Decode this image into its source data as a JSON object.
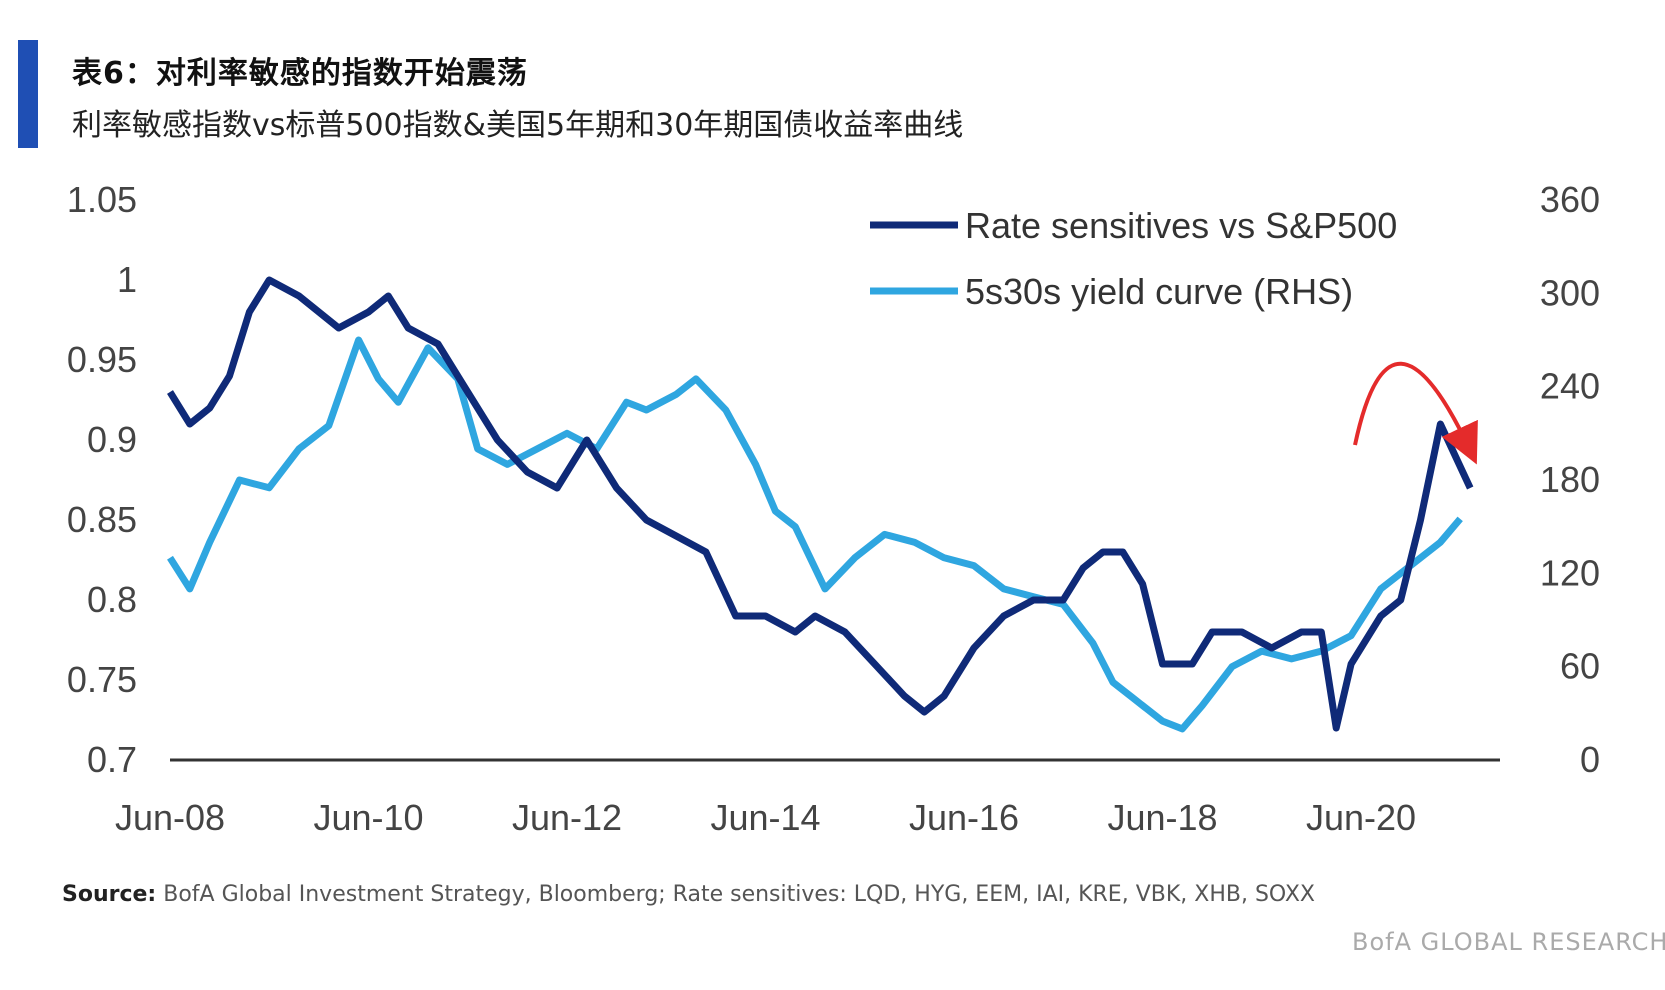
{
  "title": "表6：对利率敏感的指数开始震荡",
  "subtitle": "利率敏感指数vs标普500指数&美国5年期和30年期国债收益率曲线",
  "source_label": "Source:",
  "source_text": "BofA Global Investment Strategy, Bloomberg; Rate sensitives: LQD, HYG, EEM, IAI, KRE, VBK, XHB, SOXX",
  "brand": "BofA GLOBAL RESEARCH",
  "colors": {
    "dark_series": "#0f2a78",
    "light_series": "#2fa6e0",
    "arrow": "#e42b2b",
    "axis": "#333333"
  },
  "chart_data": {
    "type": "line",
    "x_ticks": [
      "Jun-08",
      "Jun-10",
      "Jun-12",
      "Jun-14",
      "Jun-16",
      "Jun-18",
      "Jun-20"
    ],
    "x_tick_years": [
      2008.5,
      2010.5,
      2012.5,
      2014.5,
      2016.5,
      2018.5,
      2020.5
    ],
    "xlim": [
      2008.5,
      2021.8
    ],
    "y_left": {
      "min": 0.7,
      "max": 1.05,
      "ticks": [
        "1.05",
        "1",
        "0.95",
        "0.9",
        "0.85",
        "0.8",
        "0.75",
        "0.7"
      ]
    },
    "y_right": {
      "min": 0,
      "max": 360,
      "ticks": [
        "360",
        "300",
        "240",
        "180",
        "120",
        "60",
        "0"
      ]
    },
    "legend_position": "top-right",
    "series": [
      {
        "name": "Rate sensitives vs S&P500",
        "axis": "left",
        "color": "#0f2a78",
        "x": [
          2008.5,
          2008.7,
          2008.9,
          2009.1,
          2009.3,
          2009.5,
          2009.8,
          2010.2,
          2010.5,
          2010.7,
          2010.9,
          2011.2,
          2011.5,
          2011.8,
          2012.1,
          2012.4,
          2012.7,
          2013.0,
          2013.3,
          2013.6,
          2013.9,
          2014.2,
          2014.5,
          2014.8,
          2015.0,
          2015.3,
          2015.6,
          2015.9,
          2016.1,
          2016.3,
          2016.6,
          2016.9,
          2017.2,
          2017.5,
          2017.7,
          2017.9,
          2018.1,
          2018.3,
          2018.5,
          2018.8,
          2019.0,
          2019.3,
          2019.6,
          2019.9,
          2020.1,
          2020.25,
          2020.4,
          2020.7,
          2020.9,
          2021.1,
          2021.3,
          2021.45,
          2021.6
        ],
        "y": [
          0.93,
          0.91,
          0.92,
          0.94,
          0.98,
          1.0,
          0.99,
          0.97,
          0.98,
          0.99,
          0.97,
          0.96,
          0.93,
          0.9,
          0.88,
          0.87,
          0.9,
          0.87,
          0.85,
          0.84,
          0.83,
          0.79,
          0.79,
          0.78,
          0.79,
          0.78,
          0.76,
          0.74,
          0.73,
          0.74,
          0.77,
          0.79,
          0.8,
          0.8,
          0.82,
          0.83,
          0.83,
          0.81,
          0.76,
          0.76,
          0.78,
          0.78,
          0.77,
          0.78,
          0.78,
          0.72,
          0.76,
          0.79,
          0.8,
          0.85,
          0.91,
          0.89,
          0.87
        ]
      },
      {
        "name": "5s30s yield curve (RHS)",
        "axis": "right",
        "color": "#2fa6e0",
        "x": [
          2008.5,
          2008.7,
          2008.9,
          2009.2,
          2009.5,
          2009.8,
          2010.1,
          2010.4,
          2010.6,
          2010.8,
          2011.1,
          2011.4,
          2011.6,
          2011.9,
          2012.2,
          2012.5,
          2012.8,
          2013.1,
          2013.3,
          2013.6,
          2013.8,
          2014.1,
          2014.4,
          2014.6,
          2014.8,
          2015.1,
          2015.4,
          2015.7,
          2016.0,
          2016.3,
          2016.6,
          2016.9,
          2017.2,
          2017.5,
          2017.8,
          2018.0,
          2018.2,
          2018.5,
          2018.7,
          2018.9,
          2019.2,
          2019.5,
          2019.8,
          2020.1,
          2020.4,
          2020.7,
          2021.0,
          2021.3,
          2021.5
        ],
        "y": [
          130,
          110,
          140,
          180,
          175,
          200,
          215,
          270,
          245,
          230,
          265,
          245,
          200,
          190,
          200,
          210,
          200,
          230,
          225,
          235,
          245,
          225,
          190,
          160,
          150,
          110,
          130,
          145,
          140,
          130,
          125,
          110,
          105,
          100,
          75,
          50,
          40,
          25,
          20,
          35,
          60,
          70,
          65,
          70,
          80,
          110,
          125,
          140,
          155
        ]
      }
    ],
    "annotation": "red curved arrow indicating a peak and decline"
  }
}
